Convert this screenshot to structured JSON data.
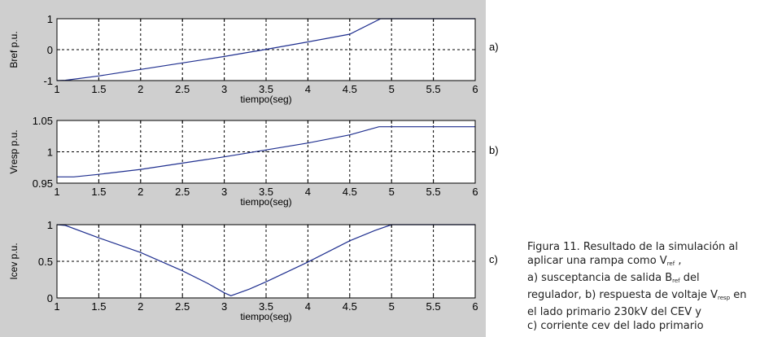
{
  "chart_data": [
    {
      "type": "line",
      "ylabel": "Bref p.u.",
      "xlabel": "tiempo(seg)",
      "xlim": [
        1,
        6
      ],
      "ylim": [
        -1,
        1
      ],
      "xticks": [
        "1",
        "1.5",
        "2",
        "2.5",
        "3",
        "3.5",
        "4",
        "4.5",
        "5",
        "5.5",
        "6"
      ],
      "yticks": [
        "-1",
        "0",
        "1"
      ],
      "grid": true,
      "series": [
        {
          "x": [
            1,
            1.1,
            1.5,
            2,
            2.5,
            3,
            3.5,
            4,
            4.5,
            4.87,
            6
          ],
          "y": [
            -1,
            -0.99,
            -0.85,
            -0.64,
            -0.43,
            -0.22,
            0.01,
            0.25,
            0.5,
            1,
            1
          ]
        }
      ],
      "panel_label": "a)"
    },
    {
      "type": "line",
      "ylabel": "Vresp p.u.",
      "xlabel": "tiempo(seg)",
      "xlim": [
        1,
        6
      ],
      "ylim": [
        0.95,
        1.05
      ],
      "xticks": [
        "1",
        "1.5",
        "2",
        "2.5",
        "3",
        "3.5",
        "4",
        "4.5",
        "5",
        "5.5",
        "6"
      ],
      "yticks": [
        "0.95",
        "1",
        "1.05"
      ],
      "grid": true,
      "series": [
        {
          "x": [
            1,
            1.2,
            1.5,
            2,
            2.5,
            3,
            3.5,
            4,
            4.5,
            4.85,
            6
          ],
          "y": [
            0.96,
            0.96,
            0.964,
            0.972,
            0.982,
            0.992,
            1.003,
            1.014,
            1.027,
            1.04,
            1.04
          ]
        }
      ],
      "panel_label": "b)"
    },
    {
      "type": "line",
      "ylabel": "Icev p.u.",
      "xlabel": "tiempo(seg)",
      "xlim": [
        1,
        6
      ],
      "ylim": [
        0,
        1
      ],
      "xticks": [
        "1",
        "1.5",
        "2",
        "2.5",
        "3",
        "3.5",
        "4",
        "4.5",
        "5",
        "5.5",
        "6"
      ],
      "yticks": [
        "0",
        "0.5",
        "1"
      ],
      "grid": true,
      "series": [
        {
          "x": [
            1,
            1.1,
            1.5,
            2,
            2.5,
            2.8,
            3,
            3.08,
            3.3,
            3.5,
            4,
            4.5,
            4.8,
            5,
            6
          ],
          "y": [
            1,
            0.99,
            0.82,
            0.62,
            0.37,
            0.2,
            0.07,
            0.03,
            0.12,
            0.22,
            0.49,
            0.78,
            0.92,
            1,
            1
          ]
        }
      ],
      "panel_label": "c)"
    }
  ],
  "caption": {
    "line1": "Figura 11. Resultado de la simulación al",
    "line2_pre": "aplicar una rampa como V",
    "line2_sub": "ref",
    "line2_post": " ,",
    "line3_pre": "a) susceptancia de salida B",
    "line3_sub": "ref",
    "line3_post": " del",
    "line4_pre": "regulador, b) respuesta de voltaje V",
    "line4_sub": "resp",
    "line4_post": " en",
    "line5": "el lado primario 230kV del CEV  y",
    "line6": "c) corriente cev del lado primario"
  }
}
